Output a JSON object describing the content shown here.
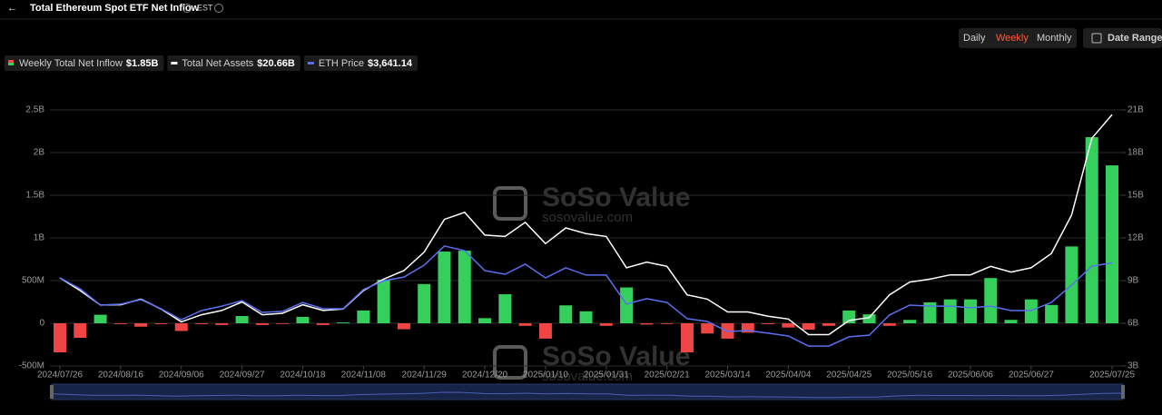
{
  "chart_data": {
    "type": "bar",
    "title": "Total Ethereum Spot ETF Net Inflow",
    "timezone": "EST",
    "periods": [
      "Daily",
      "Weekly",
      "Monthly"
    ],
    "date_range_label": "Date Range",
    "watermark": "SoSo Value",
    "watermark_url": "sosovalue.com",
    "categories": [
      "2024/07/26",
      null,
      null,
      "2024/08/16",
      null,
      null,
      "2024/09/06",
      null,
      null,
      "2024/09/27",
      null,
      null,
      "2024/10/18",
      null,
      null,
      "2024/11/08",
      null,
      null,
      "2024/11/29",
      null,
      null,
      "2024/12/20",
      null,
      null,
      "2025/01/10",
      null,
      null,
      "2025/01/31",
      null,
      null,
      "2025/02/21",
      null,
      null,
      "2025/03/14",
      null,
      null,
      "2025/04/04",
      null,
      null,
      "2025/04/25",
      null,
      null,
      "2025/05/16",
      null,
      null,
      "2025/06/06",
      null,
      null,
      "2025/06/27",
      null,
      null,
      null,
      "2025/07/25"
    ],
    "ylim": [
      -500,
      2500
    ],
    "yticks": [
      {
        "value": -500,
        "label": "-500M"
      },
      0,
      {
        "value": 500,
        "label": "500M"
      },
      {
        "value": 1000,
        "label": "1B"
      },
      {
        "value": 1500,
        "label": "1.5B"
      },
      {
        "value": 2000,
        "label": "2B"
      },
      {
        "value": 2500,
        "label": "2.5B"
      }
    ],
    "y2lim": [
      3,
      21
    ],
    "y2ticks": [
      {
        "value": 3,
        "label": "3B"
      },
      {
        "value": 6,
        "label": "6B"
      },
      {
        "value": 9,
        "label": "9B"
      },
      {
        "value": 12,
        "label": "12B"
      },
      {
        "value": 15,
        "label": "15B"
      },
      {
        "value": 18,
        "label": "18B"
      },
      {
        "value": 21,
        "label": "21B"
      }
    ],
    "y3lim": [
      1087.5,
      7432.5
    ],
    "grid": true,
    "series": [
      {
        "name": "Weekly Total Net Inflow",
        "type": "bar",
        "color": "#35d05c",
        "negative_color": "#f04545",
        "legend_value": "$1.85B",
        "values": [
          -340,
          -170,
          100,
          -10,
          -40,
          -10,
          -90,
          -10,
          -20,
          85,
          -20,
          -5,
          75,
          -20,
          10,
          150,
          510,
          -70,
          460,
          840,
          850,
          60,
          340,
          -30,
          -180,
          210,
          140,
          -30,
          420,
          -15,
          -5,
          -340,
          -120,
          -180,
          -110,
          -10,
          -50,
          -75,
          -30,
          150,
          105,
          -30,
          40,
          245,
          280,
          280,
          530,
          40,
          280,
          215,
          900,
          2180,
          1850
        ]
      },
      {
        "name": "Total Net Assets",
        "type": "line",
        "axis": "y2",
        "color": "#ffffff",
        "legend_value": "$20.66B",
        "values": [
          9.19,
          8.3,
          7.28,
          7.3,
          7.7,
          7.0,
          6.1,
          6.6,
          6.9,
          7.5,
          6.6,
          6.7,
          7.3,
          6.9,
          7.0,
          8.3,
          9.1,
          9.7,
          11.0,
          13.3,
          13.8,
          12.2,
          12.1,
          13.1,
          11.6,
          12.7,
          12.3,
          12.1,
          9.9,
          10.3,
          10.0,
          8.0,
          7.7,
          6.8,
          6.8,
          6.5,
          6.3,
          5.2,
          5.2,
          6.2,
          6.4,
          8.0,
          8.9,
          9.1,
          9.4,
          9.4,
          10.0,
          9.6,
          9.9,
          10.9,
          13.6,
          19.0,
          20.66
        ]
      },
      {
        "name": "ETH Price",
        "type": "line",
        "axis": "y3",
        "color": "#5b6ff0",
        "legend_value": "$3,641.14",
        "values": [
          3270,
          3000,
          2595,
          2620,
          2730,
          2505,
          2235,
          2460,
          2570,
          2705,
          2415,
          2440,
          2660,
          2505,
          2505,
          2980,
          3200,
          3290,
          3585,
          4060,
          3945,
          3450,
          3360,
          3610,
          3270,
          3520,
          3340,
          3340,
          2620,
          2755,
          2660,
          2260,
          2190,
          1940,
          1965,
          1900,
          1830,
          1580,
          1580,
          1810,
          1850,
          2350,
          2595,
          2570,
          2570,
          2530,
          2570,
          2460,
          2460,
          2660,
          3090,
          3560,
          3641.14
        ]
      }
    ]
  }
}
